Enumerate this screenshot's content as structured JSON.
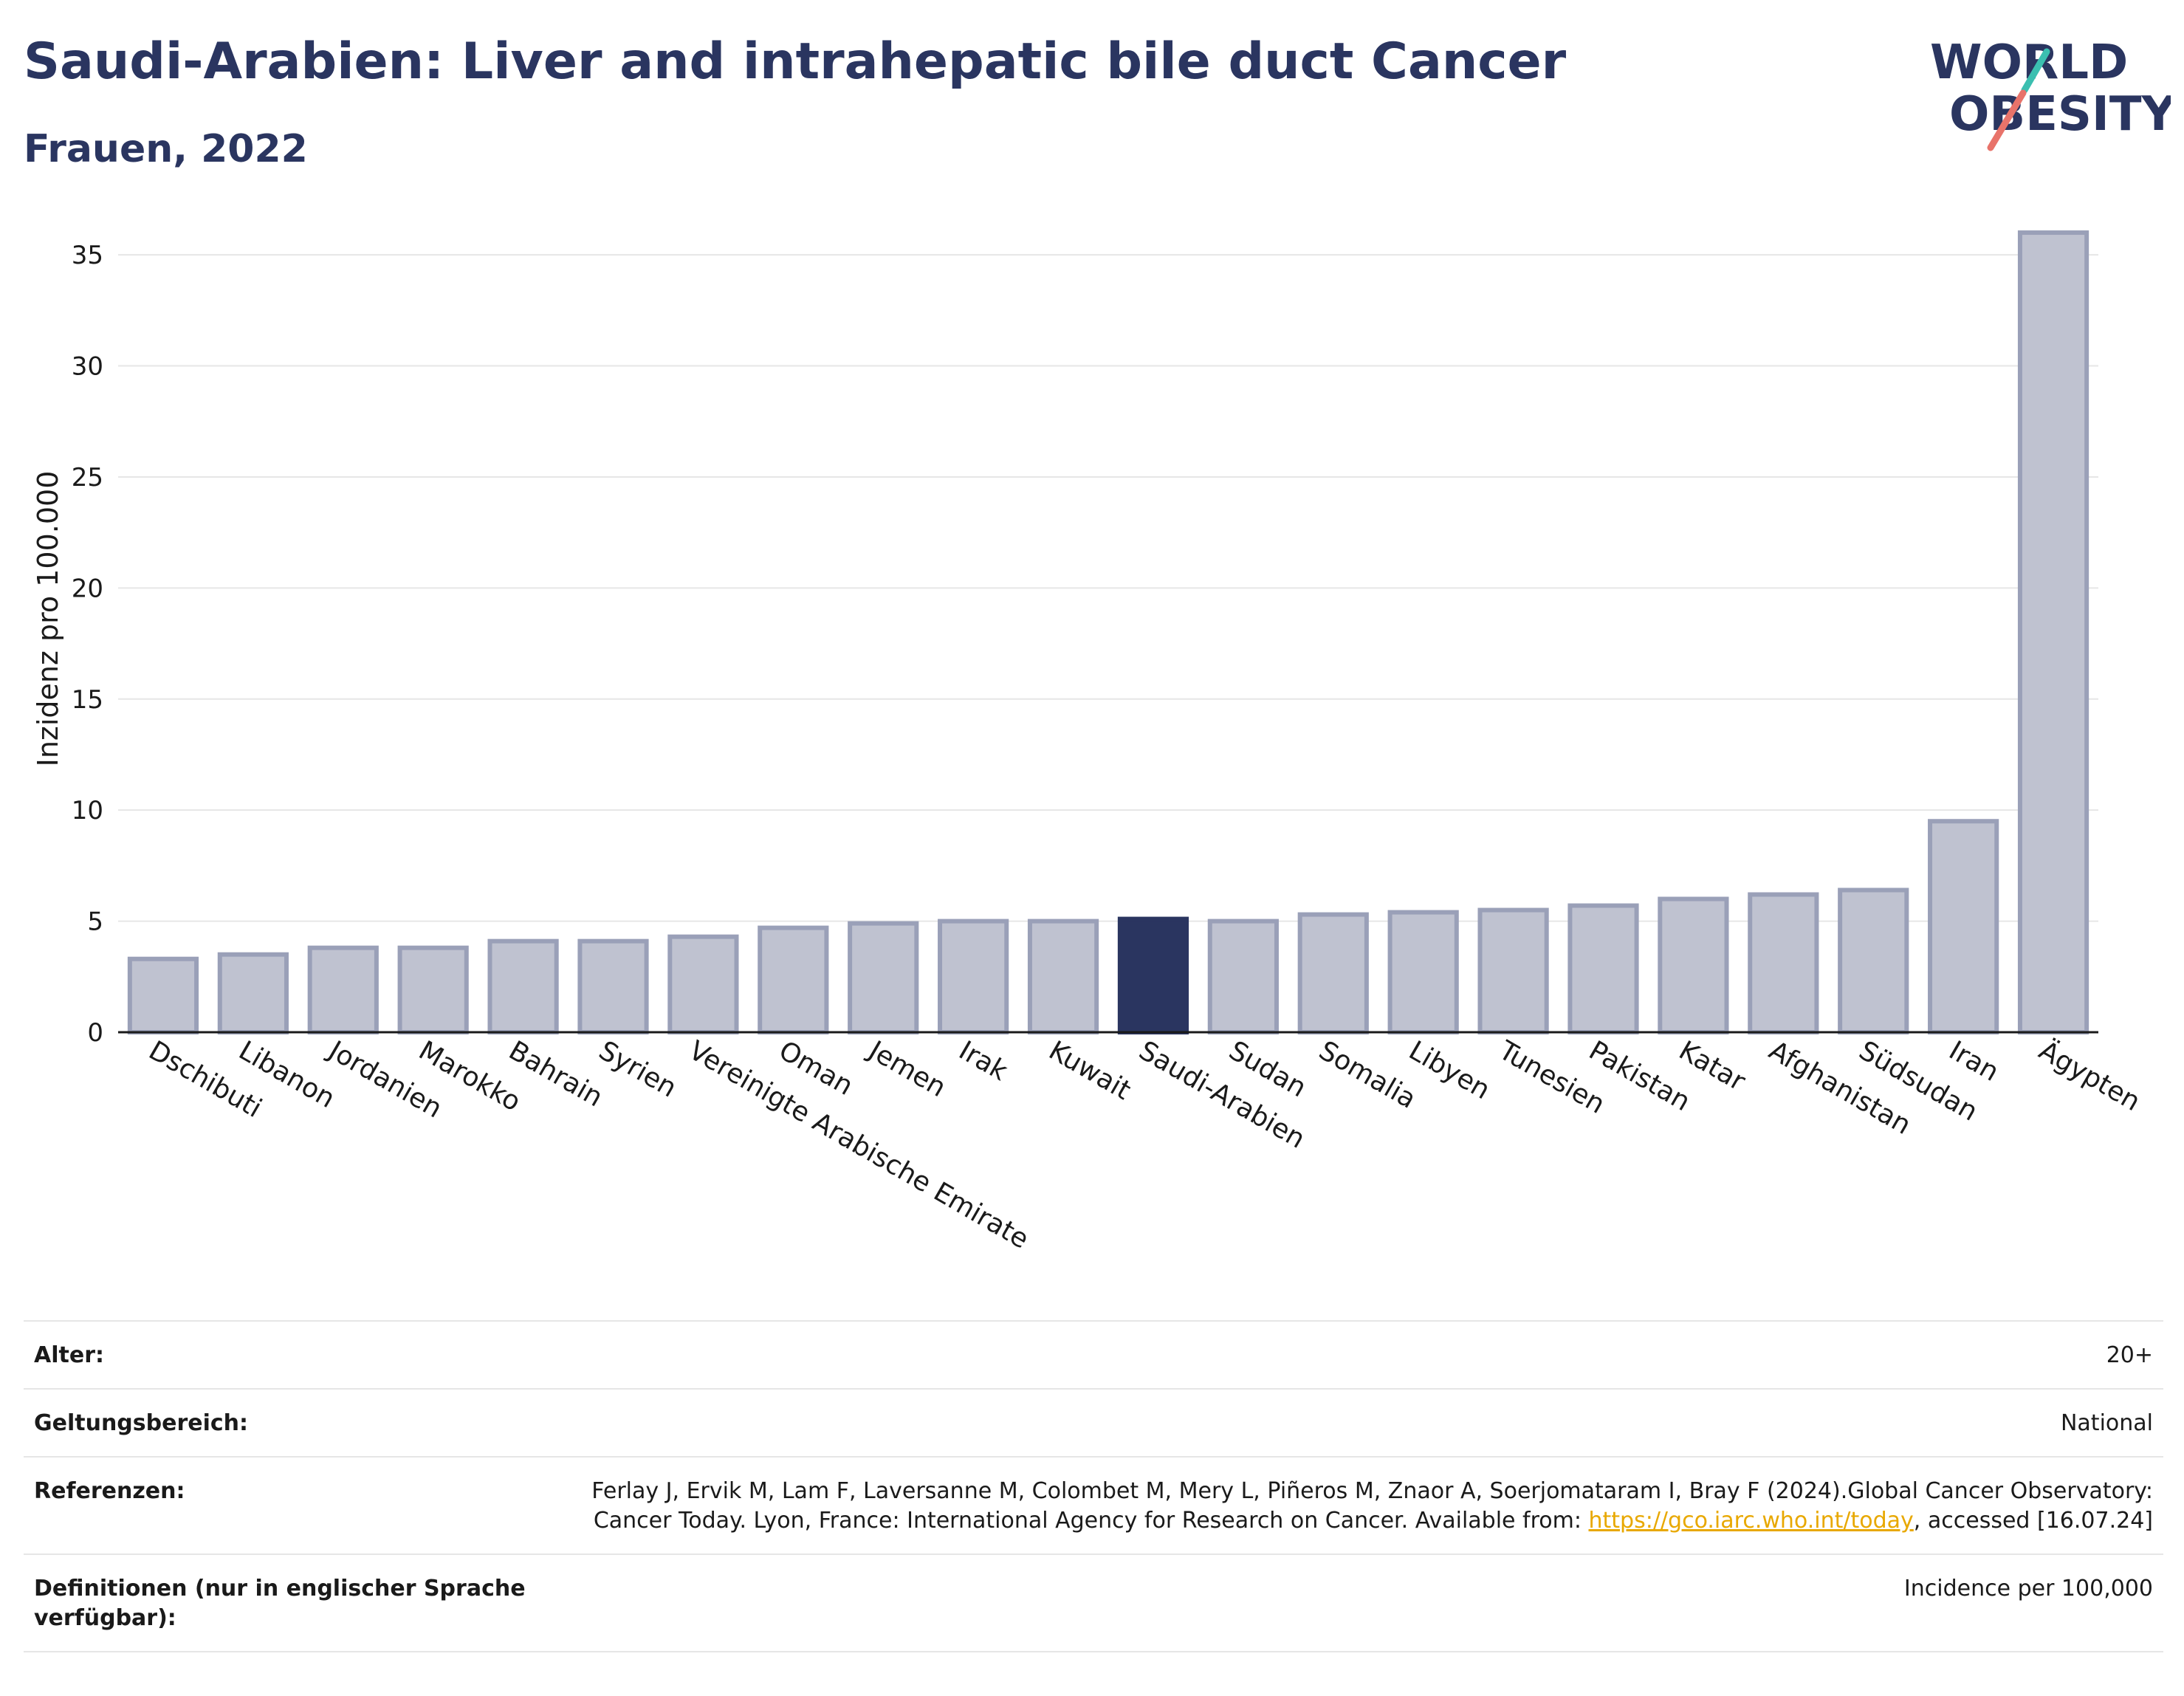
{
  "header": {
    "title": "Saudi-Arabien: Liver and intrahepatic bile duct Cancer",
    "subtitle": "Frauen, 2022"
  },
  "logo": {
    "line1": "WORLD",
    "line2": "OBESITY"
  },
  "colors": {
    "highlight": "#2a3560",
    "bar_fill": "#bfc2d0",
    "bar_stroke": "#9aa0b8",
    "title": "#2a3560",
    "link": "#e8a800",
    "logo_teal": "#3bbfb0",
    "logo_coral": "#e8736a"
  },
  "chart_data": {
    "type": "bar",
    "title": "Saudi-Arabien: Liver and intrahepatic bile duct Cancer",
    "subtitle": "Frauen, 2022",
    "xlabel": "",
    "ylabel": "Inzidenz pro 100.000",
    "ylim": [
      0,
      36.5
    ],
    "yticks": [
      0,
      5,
      10,
      15,
      20,
      25,
      30,
      35
    ],
    "grid": true,
    "highlight": "Saudi-Arabien",
    "categories": [
      "Dschibuti",
      "Libanon",
      "Jordanien",
      "Marokko",
      "Bahrain",
      "Syrien",
      "Vereinigte Arabische Emirate",
      "Oman",
      "Jemen",
      "Irak",
      "Kuwait",
      "Saudi-Arabien",
      "Sudan",
      "Somalia",
      "Libyen",
      "Tunesien",
      "Pakistan",
      "Katar",
      "Afghanistan",
      "Südsudan",
      "Iran",
      "Ägypten"
    ],
    "values": [
      3.3,
      3.5,
      3.8,
      3.8,
      4.1,
      4.1,
      4.3,
      4.7,
      4.9,
      5.0,
      5.0,
      5.1,
      5.0,
      5.3,
      5.4,
      5.5,
      5.7,
      6.0,
      6.2,
      6.4,
      9.5,
      36.0
    ]
  },
  "meta": {
    "age_label": "Alter:",
    "age_value": "20+",
    "scope_label": "Geltungsbereich:",
    "scope_value": "National",
    "ref_label": "Referenzen:",
    "ref_text_1": "Ferlay J, Ervik M, Lam F, Laversanne M, Colombet M, Mery L, Piñeros M, Znaor A, Soerjomataram I, Bray F (2024).Global Cancer Observatory: Cancer Today. Lyon, France: International Agency for Research on Cancer. Available from: ",
    "ref_link": "https://gco.iarc.who.int/today",
    "ref_text_2": ", accessed [16.07.24]",
    "def_label": "Definitionen (nur in englischer Sprache verfügbar):",
    "def_value": "Incidence per 100,000"
  }
}
